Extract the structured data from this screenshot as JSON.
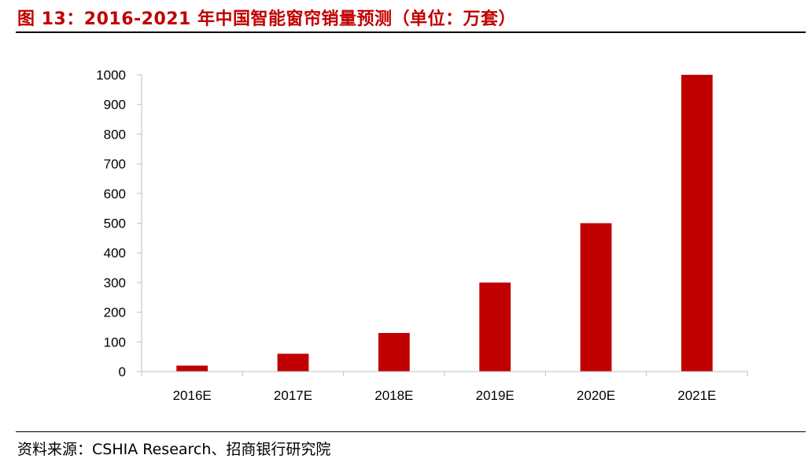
{
  "figure": {
    "title": "图 13：2016-2021 年中国智能窗帘销量预测（单位：万套）",
    "source": "资料来源：CSHIA Research、招商银行研究院"
  },
  "colors": {
    "bar": "#c00000",
    "title": "#c00000",
    "axis": "#bfbfbf",
    "text": "#000000"
  },
  "chart_data": {
    "type": "bar",
    "title": "图 13：2016-2021 年中国智能窗帘销量预测（单位：万套）",
    "categories": [
      "2016E",
      "2017E",
      "2018E",
      "2019E",
      "2020E",
      "2021E"
    ],
    "values": [
      20,
      60,
      130,
      300,
      500,
      1000
    ],
    "xlabel": "",
    "ylabel": "",
    "ylim": [
      0,
      1000
    ],
    "yticks": [
      0,
      100,
      200,
      300,
      400,
      500,
      600,
      700,
      800,
      900,
      1000
    ],
    "grid": false,
    "legend": "none"
  }
}
